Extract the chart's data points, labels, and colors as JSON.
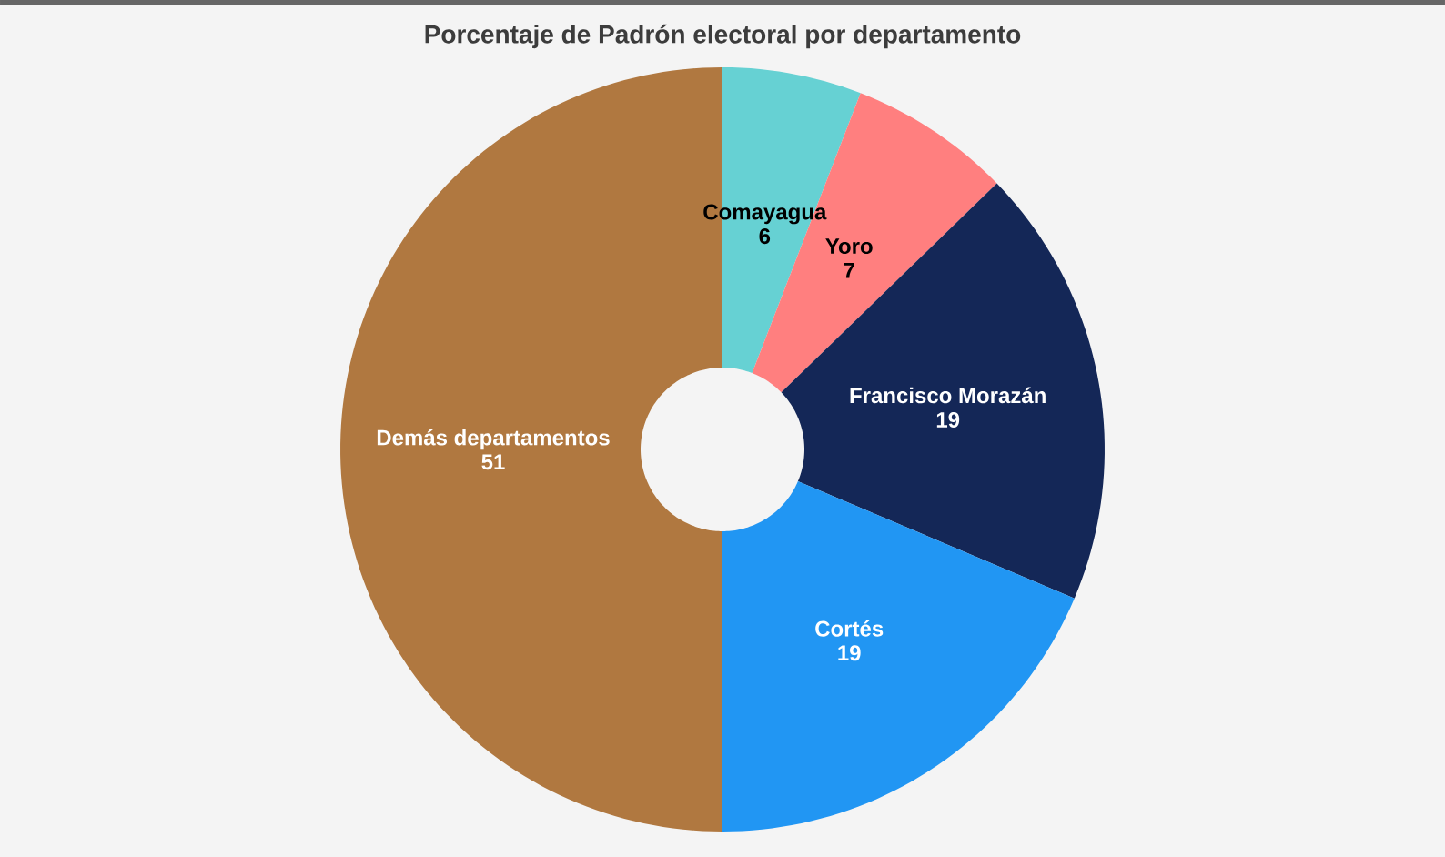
{
  "chart_data": {
    "type": "donut",
    "title": "Porcentaje de Padrón electoral por departamento",
    "categories": [
      "Comayagua",
      "Yoro",
      "Francisco Morazán",
      "Cortés",
      "Demás departamentos"
    ],
    "values": [
      6,
      7,
      19,
      19,
      51
    ],
    "colors": [
      "#66d1d3",
      "#ff7f7f",
      "#142757",
      "#2196f3",
      "#b07840"
    ],
    "data_labels": true
  }
}
